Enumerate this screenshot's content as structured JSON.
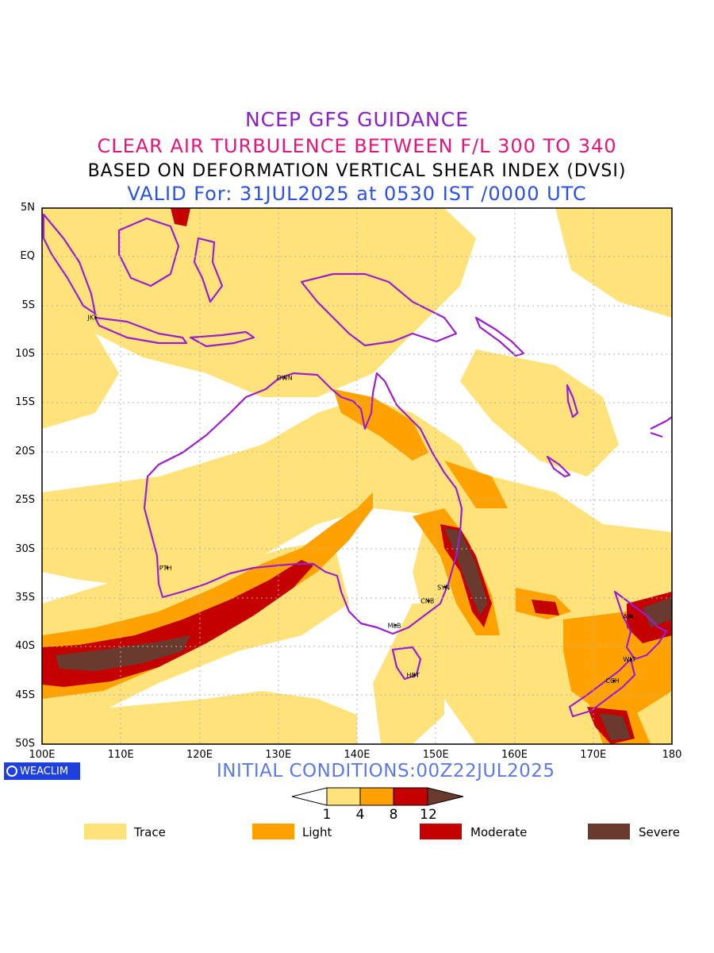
{
  "header": {
    "line1": "NCEP GFS GUIDANCE",
    "line2": "CLEAR AIR TURBULENCE BETWEEN F/L 300 TO 340",
    "line3": "BASED ON DEFORMATION VERTICAL SHEAR INDEX (DVSI)",
    "line4": "VALID For: 31JUL2025 at 0530 IST /0000 UTC"
  },
  "map": {
    "lon_range": [
      100,
      180
    ],
    "lat_range": [
      -50,
      5
    ],
    "lat_labels": [
      "5N",
      "EQ",
      "5S",
      "10S",
      "15S",
      "20S",
      "25S",
      "30S",
      "35S",
      "40S",
      "45S",
      "50S"
    ],
    "lon_labels": [
      "100E",
      "110E",
      "120E",
      "130E",
      "140E",
      "150E",
      "160E",
      "170E",
      "180"
    ],
    "cities": [
      {
        "code": "JKT",
        "lon": 106.8,
        "lat": -6.2
      },
      {
        "code": "DWN",
        "lon": 130.8,
        "lat": -12.4
      },
      {
        "code": "PTH",
        "lon": 115.9,
        "lat": -31.9
      },
      {
        "code": "SYN",
        "lon": 151.2,
        "lat": -33.9
      },
      {
        "code": "CNB",
        "lon": 149.1,
        "lat": -35.3
      },
      {
        "code": "MLB",
        "lon": 144.9,
        "lat": -37.8
      },
      {
        "code": "HBT",
        "lon": 147.3,
        "lat": -42.9
      },
      {
        "code": "AKL",
        "lon": 174.8,
        "lat": -36.9
      },
      {
        "code": "WLT",
        "lon": 174.8,
        "lat": -41.3
      },
      {
        "code": "CCH",
        "lon": 172.6,
        "lat": -43.5
      }
    ],
    "coast_color": "#9b1fd0"
  },
  "footer": {
    "badge": "WEACLIM",
    "badge_icon": "copyright-circle-icon",
    "initial": "INITIAL CONDITIONS:00Z22JUL2025"
  },
  "colorbar": {
    "ticks": [
      "1",
      "4",
      "8",
      "12"
    ],
    "colors": [
      "#ffffff",
      "#ffe27a",
      "#ffa200",
      "#c40000",
      "#6b3a2e"
    ]
  },
  "legend": [
    {
      "label": "Trace",
      "color": "#ffe27a"
    },
    {
      "label": "Light",
      "color": "#ffa200"
    },
    {
      "label": "Moderate",
      "color": "#c40000"
    },
    {
      "label": "Severe",
      "color": "#6b3a2e"
    }
  ]
}
